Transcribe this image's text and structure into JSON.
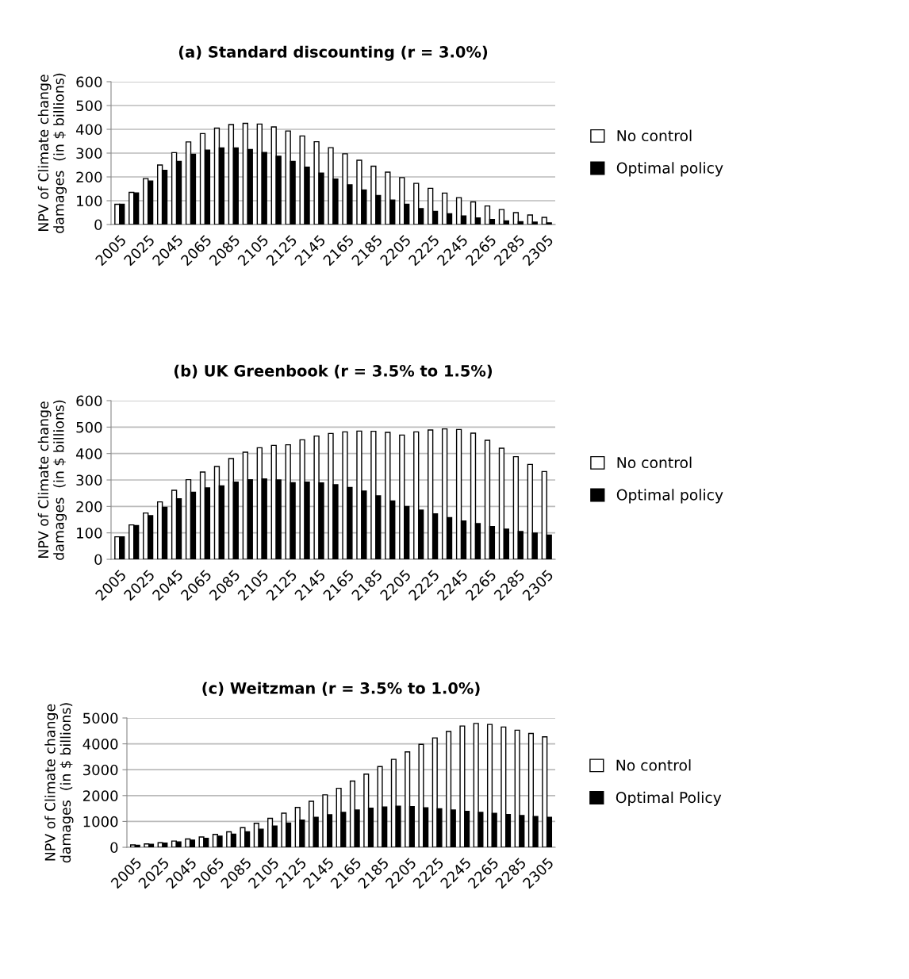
{
  "chart_data": [
    {
      "type": "bar",
      "title": "(a) Standard discounting (r = 3.0%)",
      "ylabel": "NPV of Climate change\ndamages  (in $ billions)",
      "categories": [
        "2005",
        null,
        "2025",
        null,
        "2045",
        null,
        "2065",
        null,
        "2085",
        null,
        "2105",
        null,
        "2125",
        null,
        "2145",
        null,
        "2165",
        null,
        "2185",
        null,
        "2205",
        null,
        "2225",
        null,
        "2245",
        null,
        "2265",
        null,
        "2285",
        null,
        "2305"
      ],
      "series": [
        {
          "name": "No control",
          "color": "#ffffff",
          "values": [
            85,
            135,
            193,
            250,
            302,
            347,
            382,
            405,
            420,
            425,
            422,
            410,
            393,
            372,
            348,
            323,
            297,
            270,
            245,
            220,
            197,
            173,
            152,
            132,
            113,
            95,
            78,
            63,
            50,
            40,
            30
          ]
        },
        {
          "name": "Optimal policy",
          "color": "#000000",
          "values": [
            85,
            133,
            183,
            228,
            265,
            295,
            313,
            322,
            322,
            315,
            303,
            287,
            265,
            241,
            216,
            191,
            167,
            145,
            122,
            103,
            85,
            67,
            55,
            45,
            36,
            28,
            21,
            15,
            12,
            10,
            7
          ]
        }
      ],
      "ylim": [
        0,
        600
      ],
      "yticks": [
        0,
        100,
        200,
        300,
        400,
        500,
        600
      ],
      "grid": "y",
      "legend": "right"
    },
    {
      "type": "bar",
      "title": "(b) UK Greenbook (r = 3.5% to 1.5%)",
      "ylabel": "NPV of Climate change\ndamages  (in $ billions)",
      "categories": [
        "2005",
        null,
        "2025",
        null,
        "2045",
        null,
        "2065",
        null,
        "2085",
        null,
        "2105",
        null,
        "2125",
        null,
        "2145",
        null,
        "2165",
        null,
        "2185",
        null,
        "2205",
        null,
        "2225",
        null,
        "2245",
        null,
        "2265",
        null,
        "2285",
        null,
        "2305"
      ],
      "series": [
        {
          "name": "No control",
          "color": "#ffffff",
          "values": [
            85,
            130,
            175,
            217,
            261,
            301,
            330,
            351,
            381,
            405,
            422,
            431,
            433,
            452,
            466,
            476,
            482,
            485,
            484,
            480,
            470,
            482,
            489,
            493,
            491,
            477,
            450,
            420,
            388,
            359,
            332
          ]
        },
        {
          "name": "Optimal policy",
          "color": "#000000",
          "values": [
            85,
            128,
            165,
            197,
            229,
            254,
            270,
            278,
            292,
            301,
            304,
            300,
            290,
            292,
            289,
            282,
            272,
            258,
            240,
            221,
            200,
            186,
            172,
            158,
            145,
            135,
            124,
            114,
            105,
            99,
            92
          ]
        }
      ],
      "ylim": [
        0,
        600
      ],
      "yticks": [
        0,
        100,
        200,
        300,
        400,
        500,
        600
      ],
      "grid": "y",
      "legend": "right"
    },
    {
      "type": "bar",
      "title": "(c) Weitzman (r = 3.5% to 1.0%)",
      "ylabel": "NPV of Climate change\ndamages  (in $ billions)",
      "categories": [
        "2005",
        null,
        "2025",
        null,
        "2045",
        null,
        "2065",
        null,
        "2085",
        null,
        "2105",
        null,
        "2125",
        null,
        "2145",
        null,
        "2165",
        null,
        "2185",
        null,
        "2205",
        null,
        "2225",
        null,
        "2245",
        null,
        "2265",
        null,
        "2285",
        null,
        "2305"
      ],
      "series": [
        {
          "name": "No control",
          "color": "#ffffff",
          "values": [
            90,
            130,
            175,
            240,
            320,
            400,
            500,
            600,
            760,
            930,
            1120,
            1320,
            1540,
            1780,
            2030,
            2280,
            2560,
            2830,
            3120,
            3400,
            3690,
            3980,
            4230,
            4480,
            4690,
            4790,
            4750,
            4650,
            4530,
            4400,
            4270
          ]
        },
        {
          "name": "Optimal Policy",
          "color": "#000000",
          "values": [
            80,
            120,
            160,
            210,
            280,
            350,
            430,
            510,
            600,
            700,
            820,
            940,
            1050,
            1160,
            1260,
            1350,
            1440,
            1510,
            1560,
            1590,
            1570,
            1530,
            1490,
            1440,
            1390,
            1350,
            1310,
            1270,
            1230,
            1190,
            1160
          ]
        }
      ],
      "ylim": [
        0,
        5000
      ],
      "yticks": [
        0,
        1000,
        2000,
        3000,
        4000,
        5000
      ],
      "grid": "y",
      "legend": "right"
    }
  ]
}
